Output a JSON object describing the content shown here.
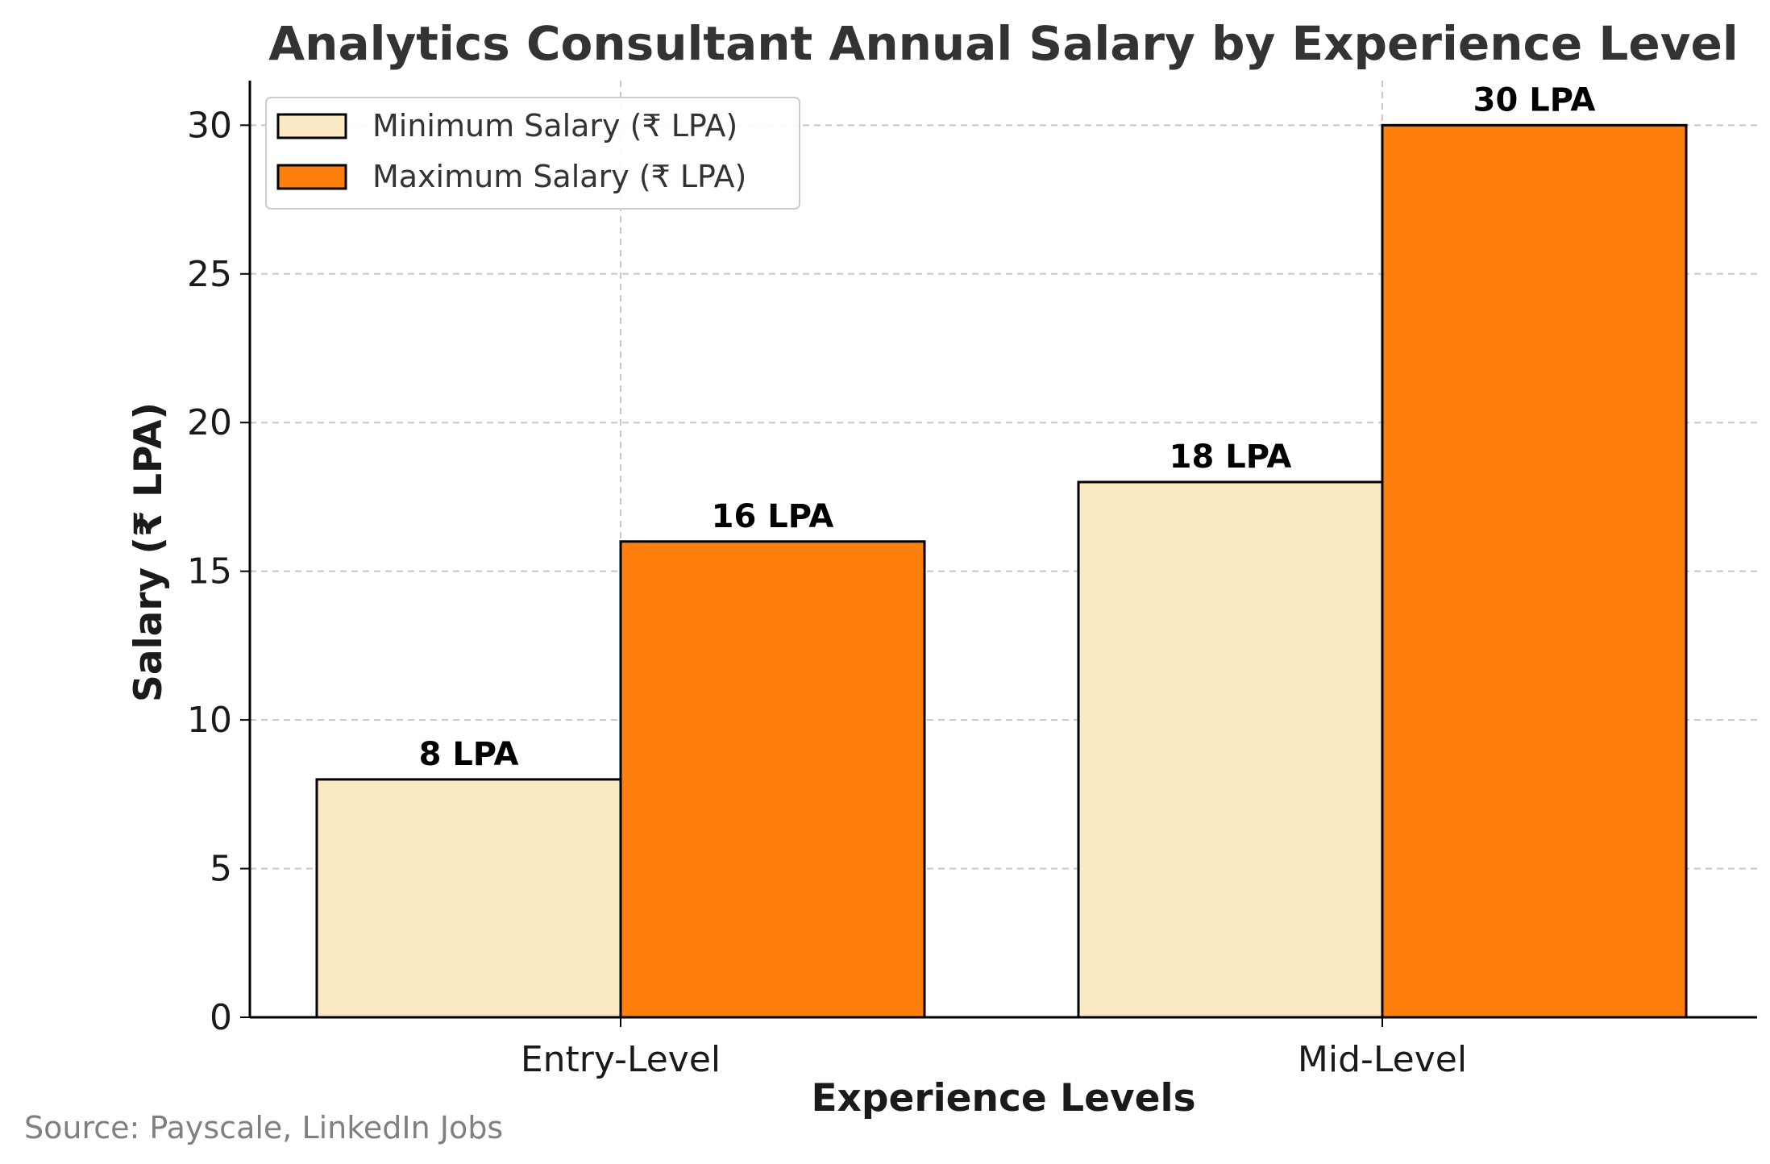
{
  "chart_data": {
    "type": "bar",
    "title": "Analytics Consultant Annual Salary by Experience Level",
    "xlabel": "Experience Levels",
    "ylabel": "Salary (₹ LPA)",
    "categories": [
      "Entry-Level",
      "Mid-Level"
    ],
    "series": [
      {
        "name": "Minimum Salary (₹ LPA)",
        "values": [
          8,
          18
        ],
        "color": "#fbe9c4",
        "labels": [
          "8 LPA",
          "18 LPA"
        ]
      },
      {
        "name": "Maximum Salary (₹ LPA)",
        "values": [
          16,
          30
        ],
        "color": "#ff7f0e",
        "labels": [
          "16 LPA",
          "30 LPA"
        ]
      }
    ],
    "ylim": [
      0,
      31.5
    ],
    "yticks": [
      0,
      5,
      10,
      15,
      20,
      25,
      30
    ],
    "grid": true,
    "legend_position": "top-left",
    "source": "Source: Payscale, LinkedIn Jobs"
  }
}
